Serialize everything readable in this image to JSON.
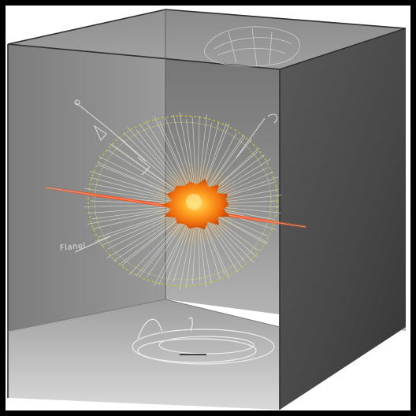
{
  "scene": {
    "description_label": "Flanel",
    "colors": {
      "frame_white": "#ffffff",
      "wall_grey": "#8d8d8d",
      "right_face_grey": "#4a4a4a",
      "burst_core": "#ff8c1a",
      "burst_glow": "#ffd35a",
      "beam_red": "#ff4a16",
      "wire_light": "#e9ead9",
      "yellow_spikes": "#c7c43a"
    }
  }
}
